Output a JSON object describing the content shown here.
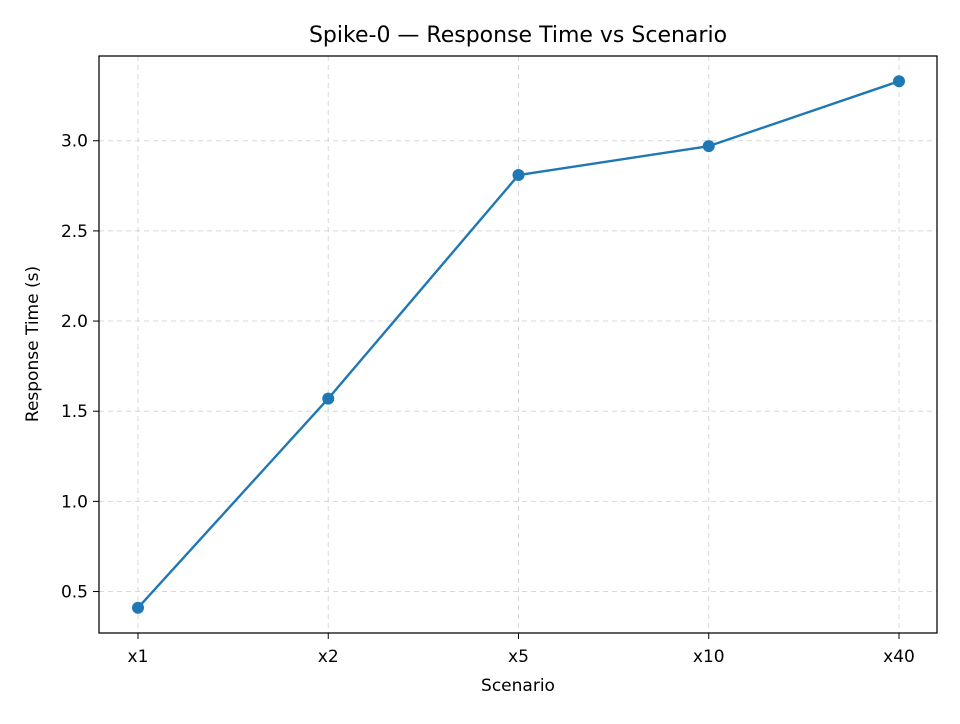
{
  "chart_data": {
    "type": "line",
    "title": "Spike-0 — Response Time vs Scenario",
    "xlabel": "Scenario",
    "ylabel": "Response Time (s)",
    "categories": [
      "x1",
      "x2",
      "x5",
      "x10",
      "x40"
    ],
    "series": [
      {
        "values": [
          0.41,
          1.57,
          2.81,
          2.97,
          3.33
        ],
        "color": "#1f77b4"
      }
    ],
    "ylim": [
      0.27,
      3.47
    ],
    "yticks": [
      0.5,
      1.0,
      1.5,
      2.0,
      2.5,
      3.0
    ],
    "ytick_labels": [
      "0.5",
      "1.0",
      "1.5",
      "2.0",
      "2.5",
      "3.0"
    ],
    "grid": true,
    "marker": "circle"
  }
}
